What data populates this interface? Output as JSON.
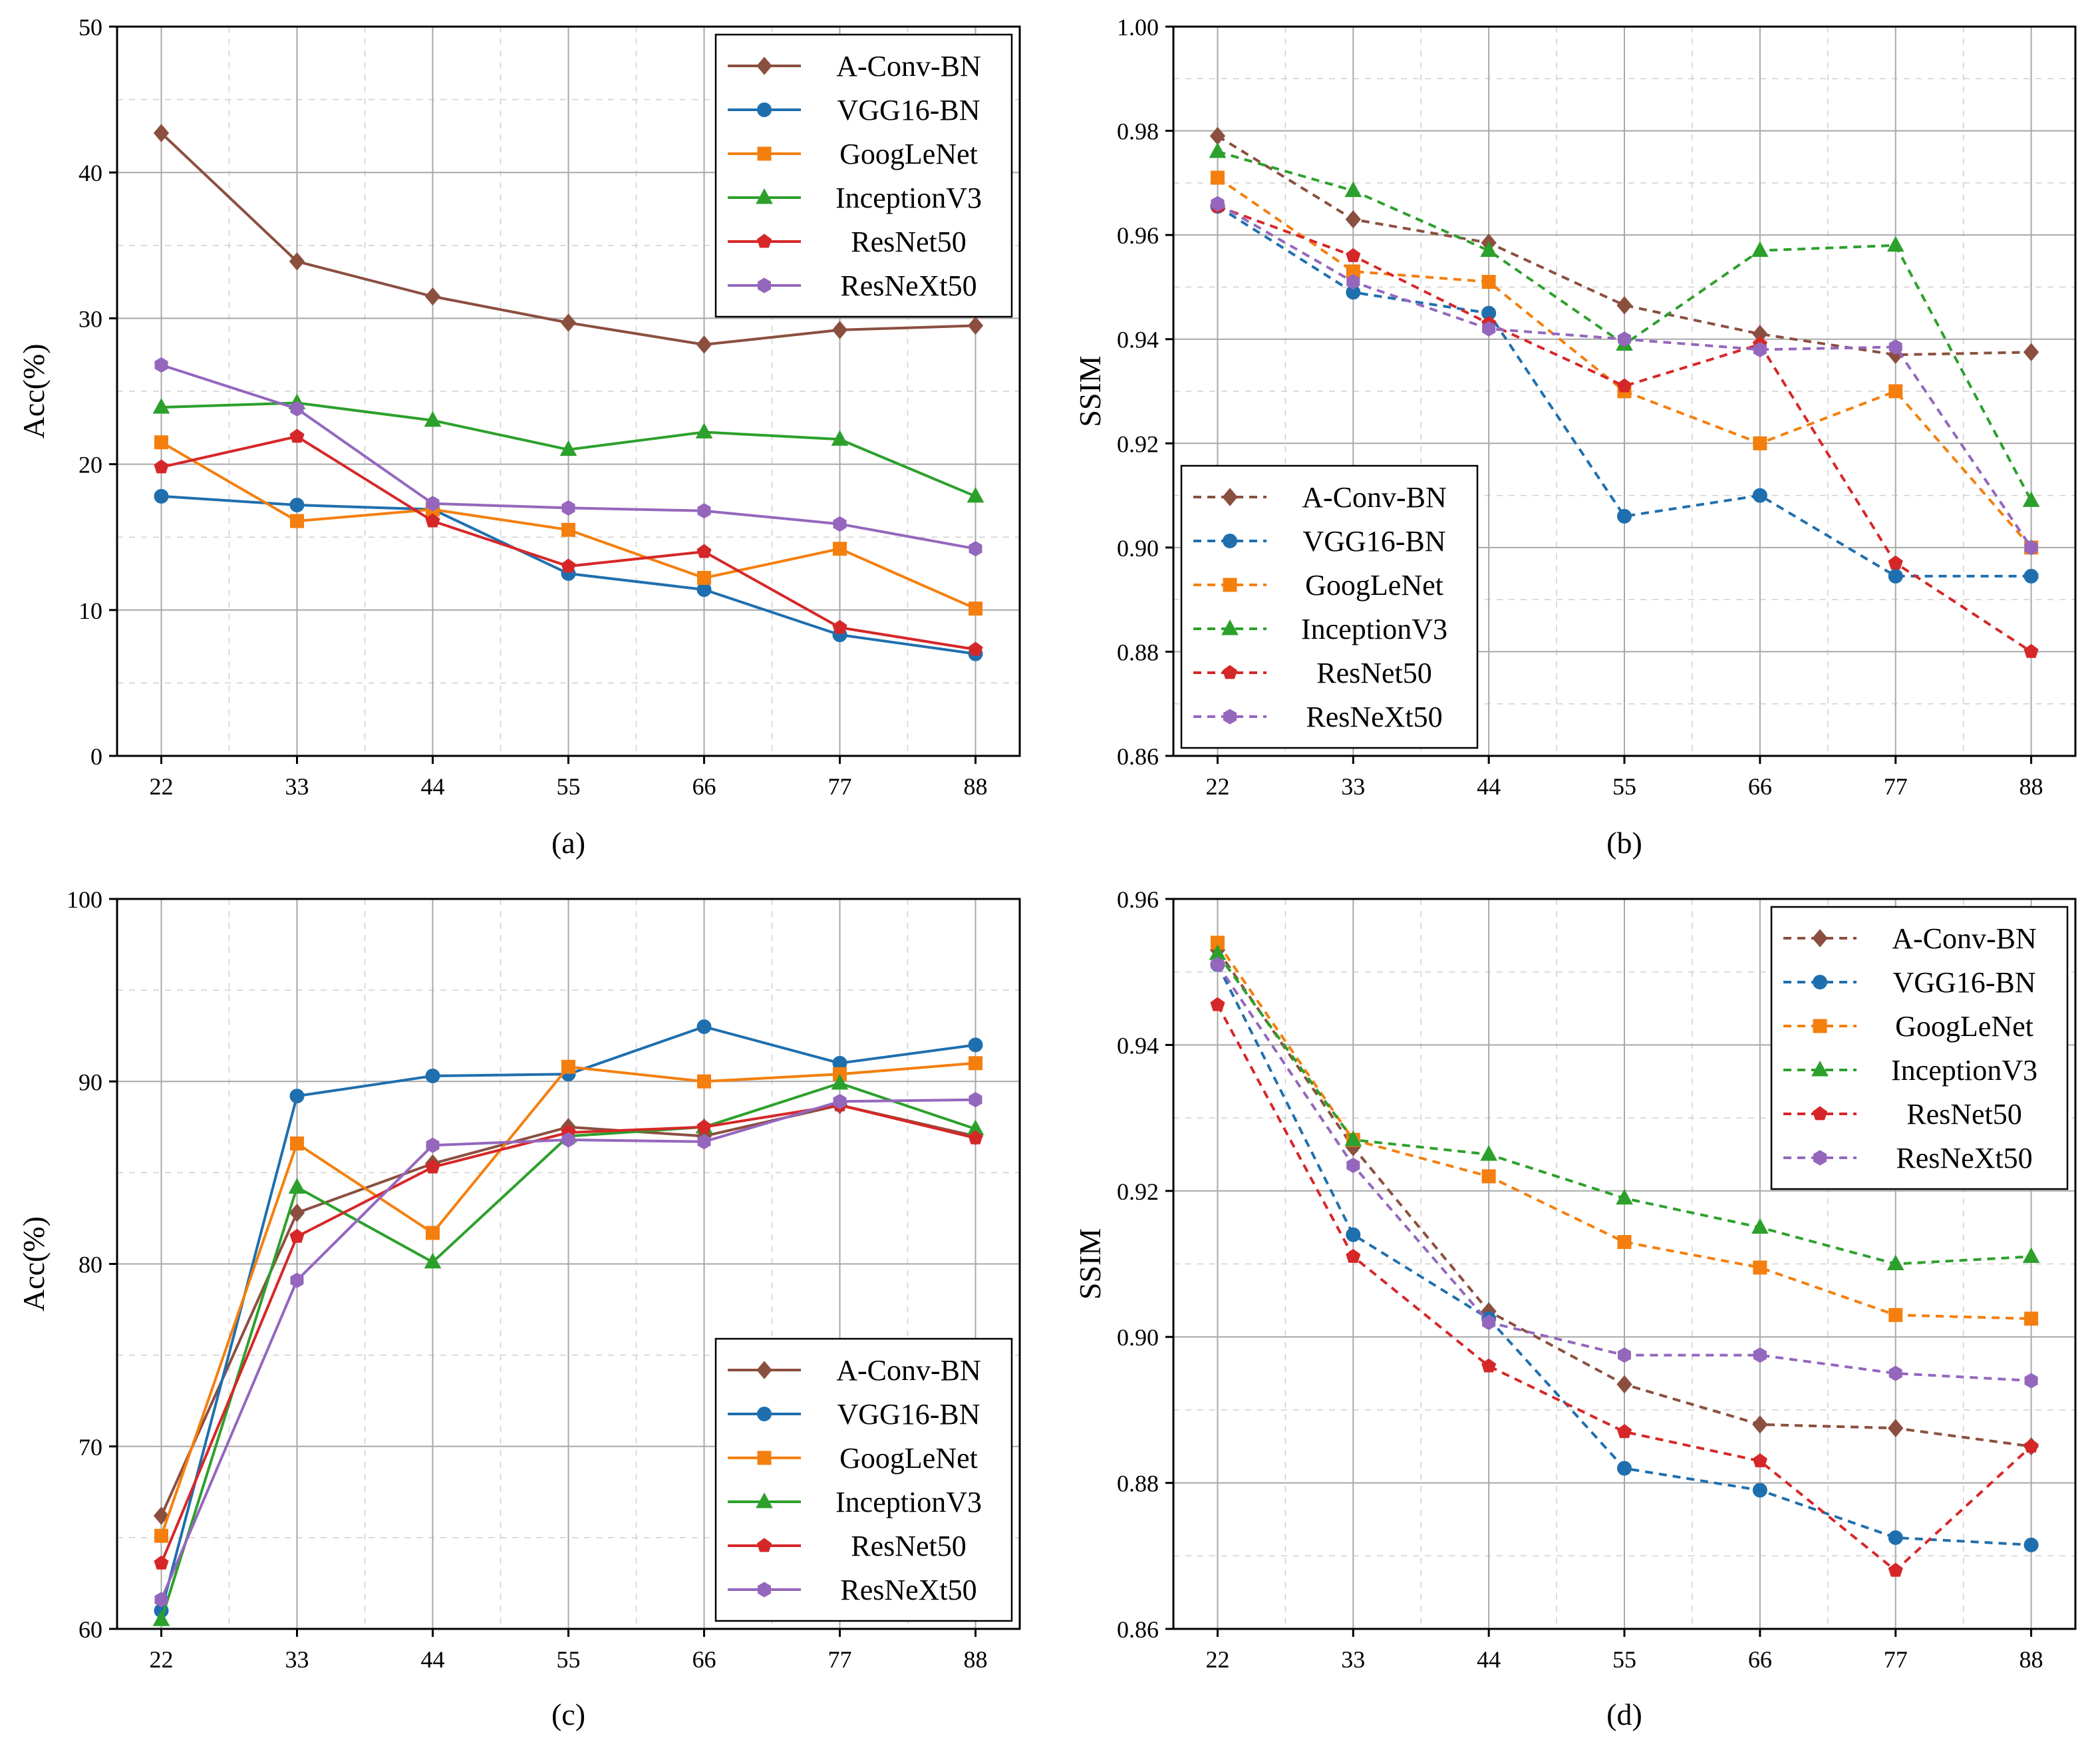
{
  "figure": {
    "series_names": [
      "A-Conv-BN",
      "VGG16-BN",
      "GoogLeNet",
      "InceptionV3",
      "ResNet50",
      "ResNeXt50"
    ],
    "colors": {
      "A-Conv-BN": "#8b4f3f",
      "VGG16-BN": "#1f6fae",
      "GoogLeNet": "#f47f0e",
      "InceptionV3": "#2ca02c",
      "ResNet50": "#d62728",
      "ResNeXt50": "#9467bd"
    },
    "markers": {
      "A-Conv-BN": "diamond",
      "VGG16-BN": "circle",
      "GoogLeNet": "square",
      "InceptionV3": "triangle",
      "ResNet50": "pentagon",
      "ResNeXt50": "hexagon"
    }
  },
  "chart_data": [
    {
      "type": "line",
      "caption": "(a)",
      "xlabel": "",
      "ylabel": "Acc(%)",
      "categories": [
        "22",
        "33",
        "44",
        "55",
        "66",
        "77",
        "88"
      ],
      "ylim": [
        0,
        50
      ],
      "yticks": [
        "0",
        "10",
        "20",
        "30",
        "40",
        "50"
      ],
      "line_style": "solid",
      "grid": true,
      "legend_position": "top-right",
      "series": [
        {
          "name": "A-Conv-BN",
          "values": [
            42.7,
            33.9,
            31.5,
            29.7,
            28.2,
            29.2,
            29.5
          ]
        },
        {
          "name": "VGG16-BN",
          "values": [
            17.8,
            17.2,
            16.9,
            12.5,
            11.4,
            8.3,
            7.0
          ]
        },
        {
          "name": "GoogLeNet",
          "values": [
            21.5,
            16.1,
            16.9,
            15.5,
            12.2,
            14.2,
            10.1
          ]
        },
        {
          "name": "InceptionV3",
          "values": [
            23.9,
            24.2,
            23.0,
            21.0,
            22.2,
            21.7,
            17.8
          ]
        },
        {
          "name": "ResNet50",
          "values": [
            19.8,
            21.9,
            16.1,
            13.0,
            14.0,
            8.8,
            7.3
          ]
        },
        {
          "name": "ResNeXt50",
          "values": [
            26.8,
            23.8,
            17.3,
            17.0,
            16.8,
            15.9,
            14.2
          ]
        }
      ]
    },
    {
      "type": "line",
      "caption": "(b)",
      "xlabel": "",
      "ylabel": "SSIM",
      "categories": [
        "22",
        "33",
        "44",
        "55",
        "66",
        "77",
        "88"
      ],
      "ylim": [
        0.86,
        1.0
      ],
      "yticks": [
        "0.86",
        "0.88",
        "0.90",
        "0.92",
        "0.94",
        "0.96",
        "0.98",
        "1.00"
      ],
      "line_style": "dashed",
      "grid": true,
      "legend_position": "bottom-left",
      "series": [
        {
          "name": "A-Conv-BN",
          "values": [
            0.979,
            0.963,
            0.9585,
            0.9465,
            0.941,
            0.937,
            0.9375
          ]
        },
        {
          "name": "VGG16-BN",
          "values": [
            0.9655,
            0.949,
            0.945,
            0.906,
            0.91,
            0.8945,
            0.8945
          ]
        },
        {
          "name": "GoogLeNet",
          "values": [
            0.971,
            0.953,
            0.951,
            0.93,
            0.92,
            0.93,
            0.9
          ]
        },
        {
          "name": "InceptionV3",
          "values": [
            0.976,
            0.9685,
            0.957,
            0.939,
            0.957,
            0.958,
            0.909
          ]
        },
        {
          "name": "ResNet50",
          "values": [
            0.9655,
            0.956,
            0.943,
            0.931,
            0.939,
            0.897,
            0.88
          ]
        },
        {
          "name": "ResNeXt50",
          "values": [
            0.966,
            0.951,
            0.942,
            0.94,
            0.938,
            0.9385,
            0.9
          ]
        }
      ]
    },
    {
      "type": "line",
      "caption": "(c)",
      "xlabel": "",
      "ylabel": "Acc(%)",
      "categories": [
        "22",
        "33",
        "44",
        "55",
        "66",
        "77",
        "88"
      ],
      "ylim": [
        60,
        100
      ],
      "yticks": [
        "60",
        "70",
        "80",
        "90",
        "100"
      ],
      "line_style": "solid",
      "grid": true,
      "legend_position": "bottom-right",
      "series": [
        {
          "name": "A-Conv-BN",
          "values": [
            66.2,
            82.8,
            85.5,
            87.5,
            87.0,
            88.7,
            87.0
          ]
        },
        {
          "name": "VGG16-BN",
          "values": [
            61.0,
            89.2,
            90.3,
            90.4,
            93.0,
            91.0,
            92.0
          ]
        },
        {
          "name": "GoogLeNet",
          "values": [
            65.1,
            86.6,
            81.7,
            90.8,
            90.0,
            90.4,
            91.0
          ]
        },
        {
          "name": "InceptionV3",
          "values": [
            60.5,
            84.2,
            80.1,
            87.0,
            87.5,
            89.9,
            87.4
          ]
        },
        {
          "name": "ResNet50",
          "values": [
            63.6,
            81.5,
            85.3,
            87.2,
            87.5,
            88.7,
            86.9
          ]
        },
        {
          "name": "ResNeXt50",
          "values": [
            61.6,
            79.1,
            86.5,
            86.8,
            86.7,
            88.9,
            89.0
          ]
        }
      ]
    },
    {
      "type": "line",
      "caption": "(d)",
      "xlabel": "",
      "ylabel": "SSIM",
      "categories": [
        "22",
        "33",
        "44",
        "55",
        "66",
        "77",
        "88"
      ],
      "ylim": [
        0.86,
        0.96
      ],
      "yticks": [
        "0.86",
        "0.88",
        "0.90",
        "0.92",
        "0.94",
        "0.96"
      ],
      "line_style": "dashed",
      "grid": true,
      "legend_position": "top-right",
      "series": [
        {
          "name": "A-Conv-BN",
          "values": [
            0.953,
            0.926,
            0.9035,
            0.8935,
            0.888,
            0.8875,
            0.885
          ]
        },
        {
          "name": "VGG16-BN",
          "values": [
            0.951,
            0.914,
            0.9025,
            0.882,
            0.879,
            0.8725,
            0.8715
          ]
        },
        {
          "name": "GoogLeNet",
          "values": [
            0.954,
            0.927,
            0.922,
            0.913,
            0.9095,
            0.903,
            0.9025
          ]
        },
        {
          "name": "InceptionV3",
          "values": [
            0.9525,
            0.927,
            0.925,
            0.919,
            0.915,
            0.91,
            0.911
          ]
        },
        {
          "name": "ResNet50",
          "values": [
            0.9455,
            0.911,
            0.896,
            0.887,
            0.883,
            0.868,
            0.885
          ]
        },
        {
          "name": "ResNeXt50",
          "values": [
            0.951,
            0.9235,
            0.902,
            0.8975,
            0.8975,
            0.895,
            0.894
          ]
        }
      ]
    }
  ]
}
